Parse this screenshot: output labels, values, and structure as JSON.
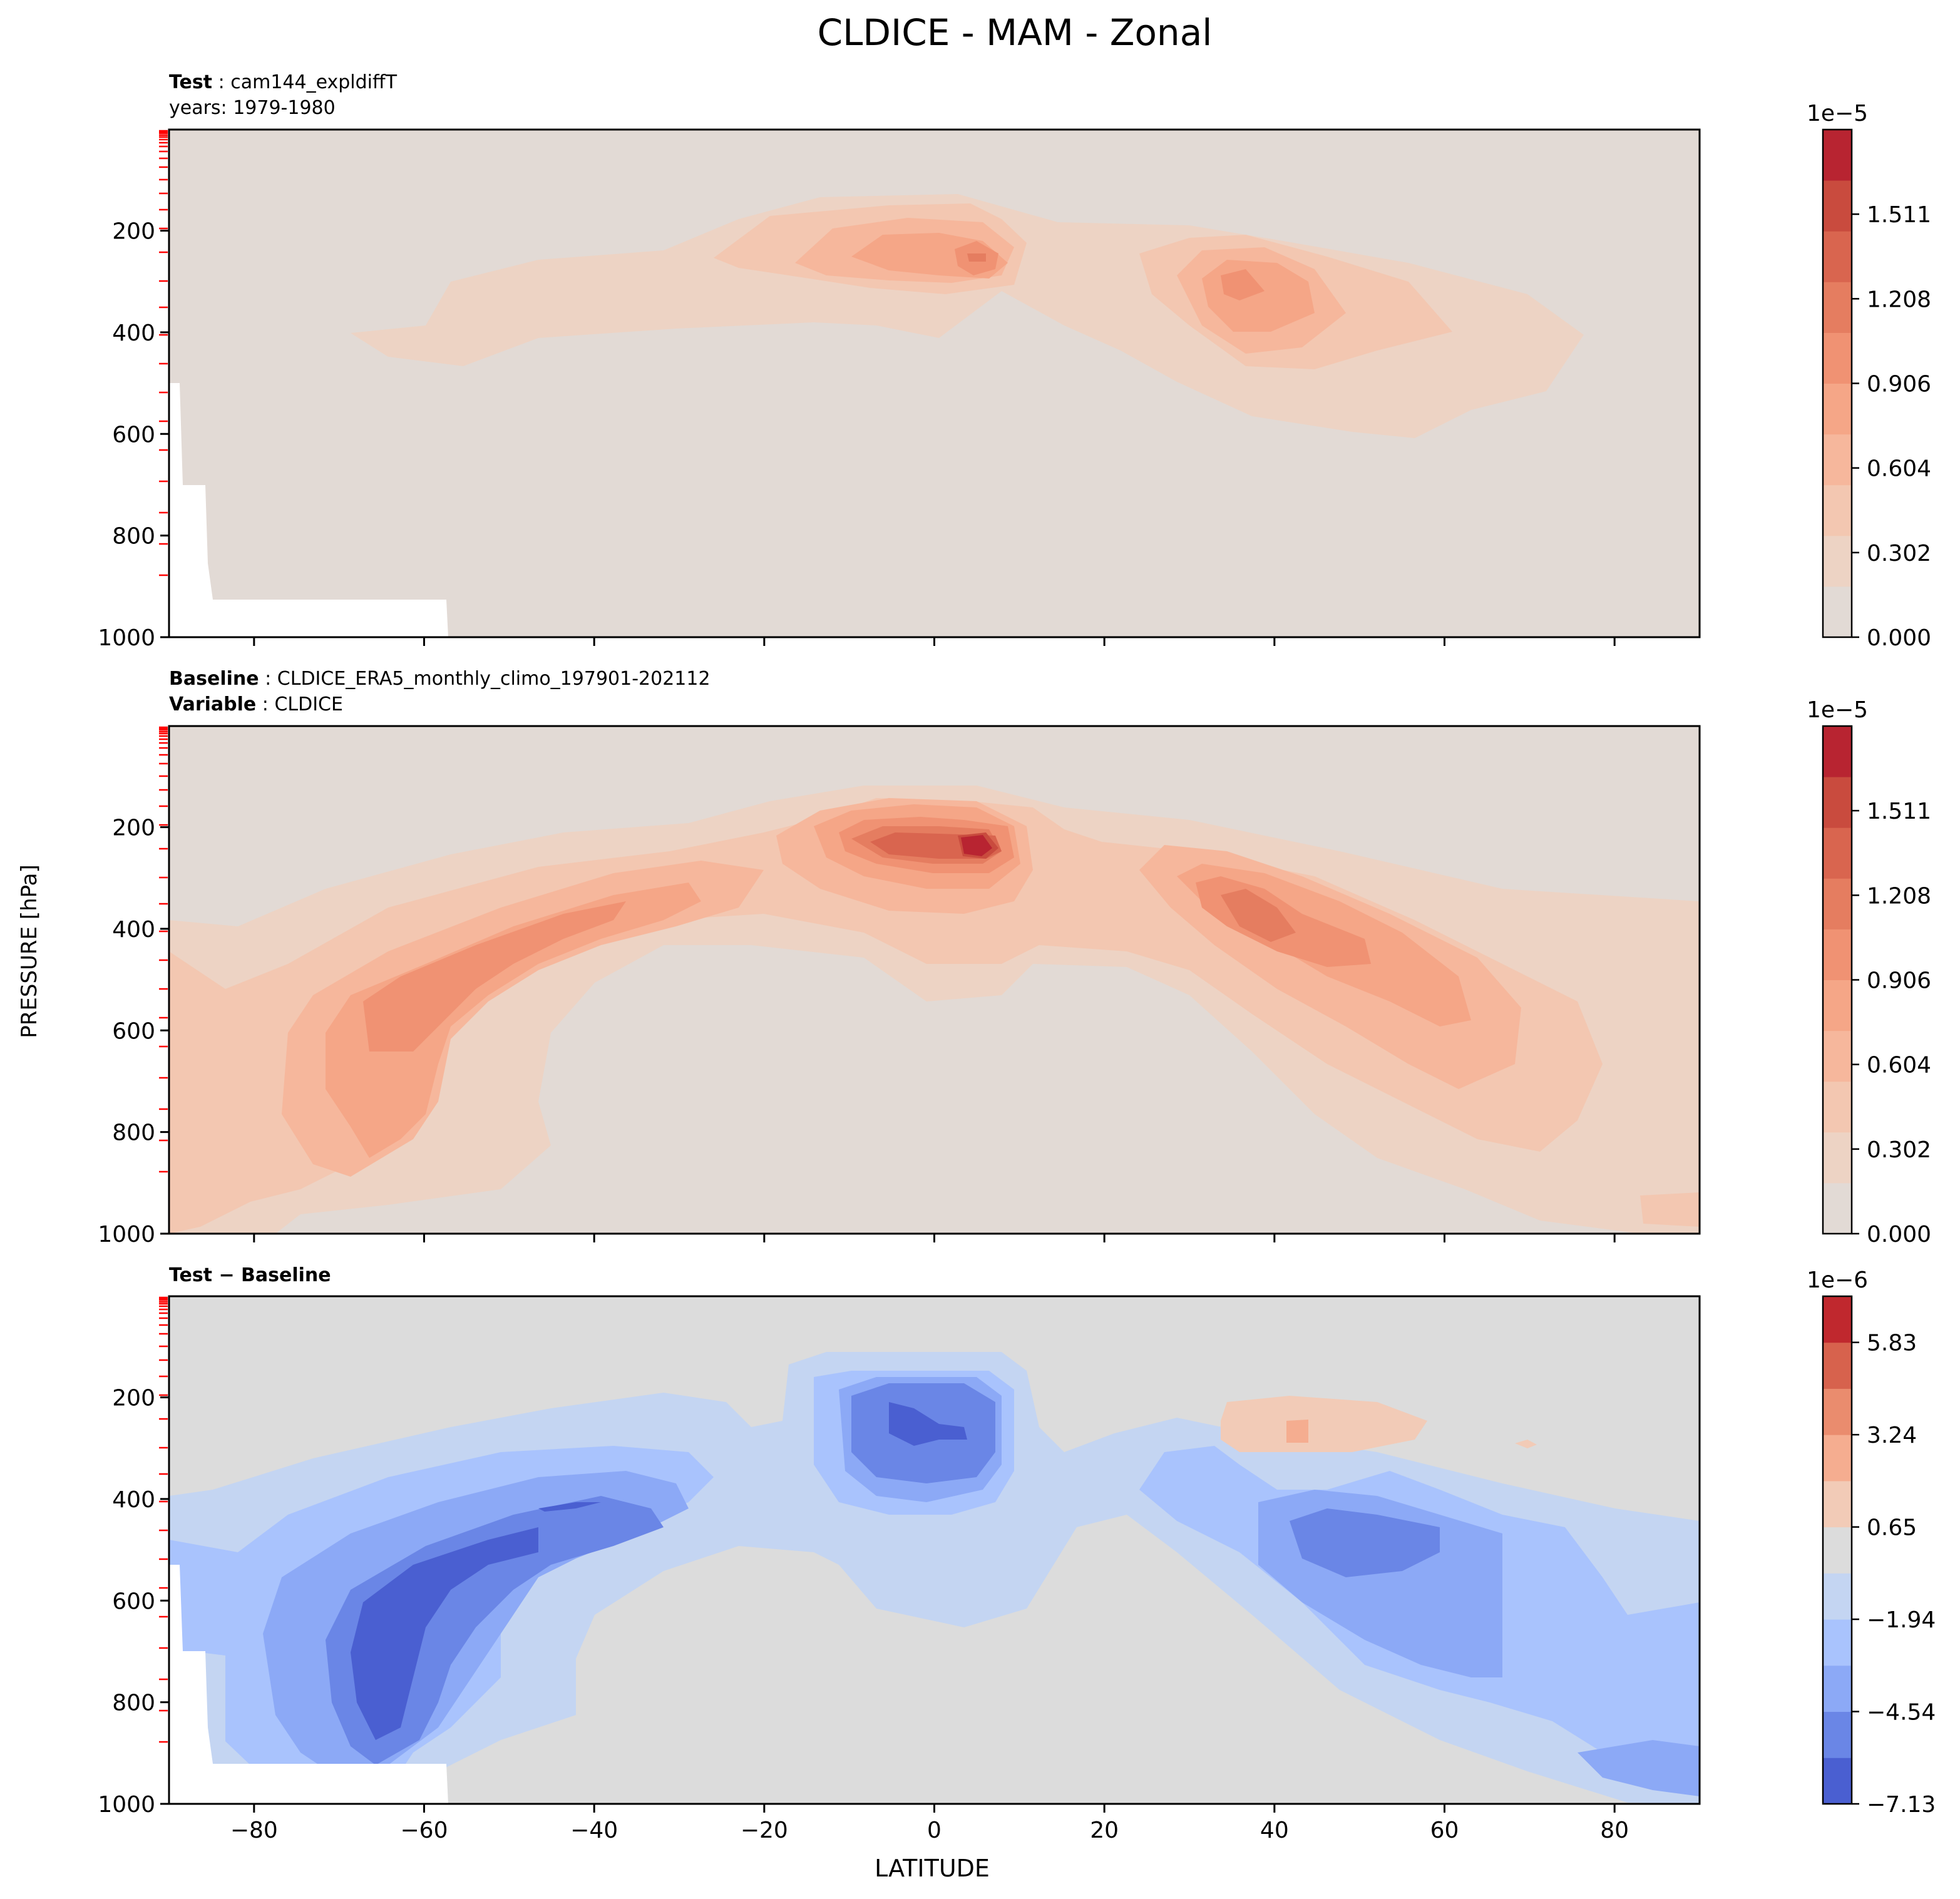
{
  "figure": {
    "title": "CLDICE - MAM - Zonal",
    "ylabel": "PRESSURE [hPa]",
    "xlabel": "LATITUDE"
  },
  "panels": [
    {
      "label_lines": [
        {
          "bold": "Test",
          "text": "cam144_expldiffT"
        },
        {
          "bold": "",
          "text": "years: 1979-1980"
        }
      ],
      "colorbar": {
        "multiplier": "1e−5",
        "ticks": [
          "0.000",
          "0.302",
          "0.604",
          "0.906",
          "1.208",
          "1.511"
        ],
        "levels": 13,
        "colors": [
          "#e2dad5",
          "#edd3c4",
          "#f3c7b1",
          "#f6b79c",
          "#f5a687",
          "#f09273",
          "#e57d60",
          "#d9654f",
          "#c94b3e",
          "#b82431"
        ]
      }
    },
    {
      "label_lines": [
        {
          "bold": "Baseline",
          "text": "CLDICE_ERA5_monthly_climo_197901-202112"
        },
        {
          "bold": "Variable",
          "text": "CLDICE"
        }
      ],
      "colorbar": {
        "multiplier": "1e−5",
        "ticks": [
          "0.000",
          "0.302",
          "0.604",
          "0.906",
          "1.208",
          "1.511"
        ],
        "levels": 13,
        "colors": [
          "#e2dad5",
          "#edd3c4",
          "#f3c7b1",
          "#f6b79c",
          "#f5a687",
          "#f09273",
          "#e57d60",
          "#d9654f",
          "#c94b3e",
          "#b82431"
        ]
      }
    },
    {
      "label_lines": [
        {
          "bold": "Test − Baseline",
          "text": ""
        }
      ],
      "colorbar": {
        "multiplier": "1e−6",
        "ticks": [
          "−7.13",
          "−4.54",
          "−1.94",
          "0.65",
          "3.24",
          "5.83"
        ],
        "levels": 12,
        "colors": [
          "#4a5fd1",
          "#6a86e6",
          "#8ca9f6",
          "#a9c3fd",
          "#c4d5f2",
          "#dcdcdc",
          "#f2cbb7",
          "#f5ad90",
          "#ea8c6e",
          "#d7624d",
          "#c0282e"
        ]
      }
    }
  ],
  "chart_data": [
    {
      "type": "heatmap",
      "name": "Test",
      "x_ticks": [
        -80,
        -60,
        -40,
        -20,
        0,
        20,
        40,
        60,
        80
      ],
      "xlim": [
        -90,
        90
      ],
      "y_ticks": [
        200,
        400,
        600,
        800,
        1000
      ],
      "ylim": [
        1000,
        1
      ],
      "value_range": [
        0,
        1.6e-05
      ],
      "features": [
        {
          "lat": 5,
          "p": 240,
          "value": 1.2e-05
        },
        {
          "lat": -3,
          "p": 230,
          "value": 9e-06
        },
        {
          "lat": 37,
          "p": 300,
          "value": 1e-05
        },
        {
          "lat": -40,
          "p": 330,
          "value": 4.5e-06
        }
      ]
    },
    {
      "type": "heatmap",
      "name": "Baseline",
      "x_ticks": [
        -80,
        -60,
        -40,
        -20,
        0,
        20,
        40,
        60,
        80
      ],
      "xlim": [
        -90,
        90
      ],
      "y_ticks": [
        200,
        400,
        600,
        800,
        1000
      ],
      "ylim": [
        1000,
        1
      ],
      "value_range": [
        0,
        1.6e-05
      ],
      "features": [
        {
          "lat": 4,
          "p": 230,
          "value": 1.55e-05
        },
        {
          "lat": -5,
          "p": 230,
          "value": 1.3e-05
        },
        {
          "lat": -55,
          "p": 530,
          "value": 9.5e-06
        },
        {
          "lat": 40,
          "p": 380,
          "value": 1e-05
        },
        {
          "lat": -65,
          "p": 850,
          "value": 7e-06
        }
      ]
    },
    {
      "type": "heatmap",
      "name": "Test - Baseline",
      "x_ticks": [
        -80,
        -60,
        -40,
        -20,
        0,
        20,
        40,
        60,
        80
      ],
      "xlim": [
        -90,
        90
      ],
      "y_ticks": [
        200,
        400,
        600,
        800,
        1000
      ],
      "ylim": [
        1000,
        1
      ],
      "value_range": [
        -8.4e-06,
        7.1e-06
      ],
      "features": [
        {
          "lat": -60,
          "p": 550,
          "value": -7.5e-06
        },
        {
          "lat": -2,
          "p": 250,
          "value": -5.5e-06
        },
        {
          "lat": 47,
          "p": 520,
          "value": -5.2e-06
        },
        {
          "lat": 42,
          "p": 270,
          "value": 1.2e-06
        }
      ]
    }
  ]
}
